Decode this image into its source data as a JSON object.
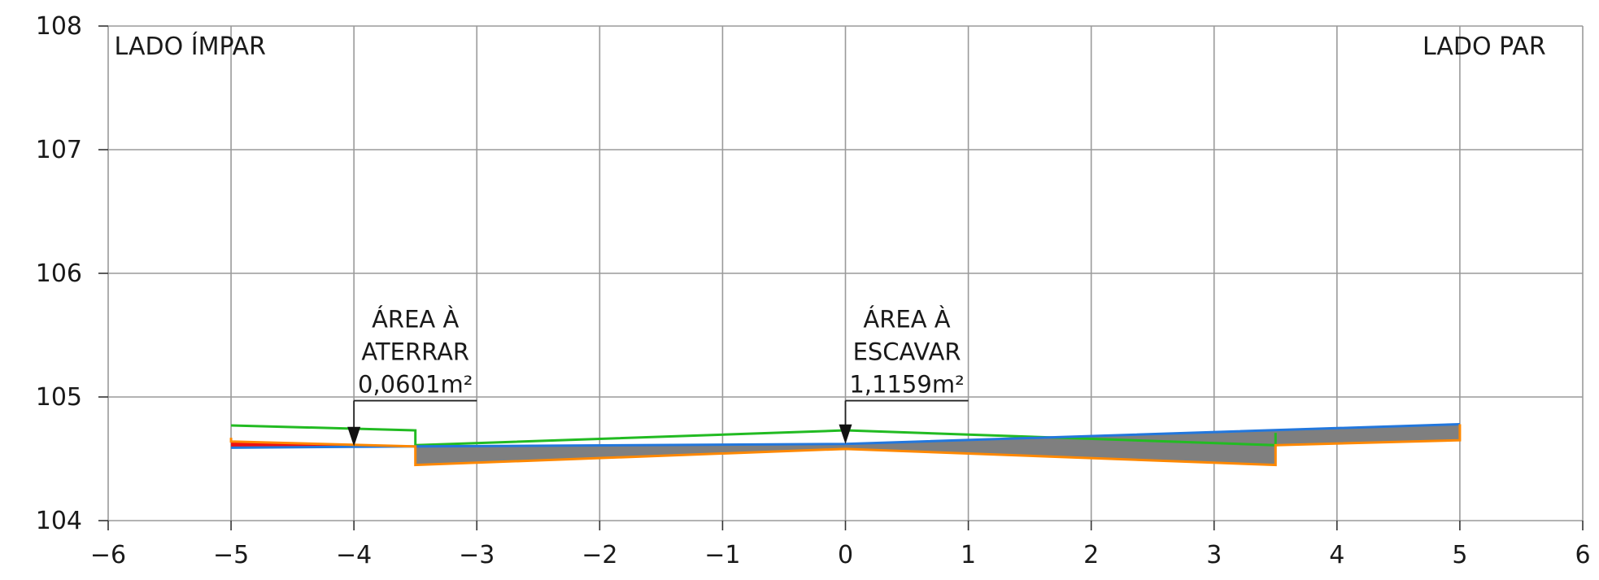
{
  "chart_data": {
    "type": "line",
    "xlim": [
      -6,
      6
    ],
    "ylim": [
      104,
      108
    ],
    "x_ticks": [
      -6,
      -5,
      -4,
      -3,
      -2,
      -1,
      0,
      1,
      2,
      3,
      4,
      5,
      6
    ],
    "y_ticks": [
      104,
      105,
      106,
      107,
      108
    ],
    "x_tick_labels": [
      "−6",
      "−5",
      "−4",
      "−3",
      "−2",
      "−1",
      "0",
      "1",
      "2",
      "3",
      "4",
      "5",
      "6"
    ],
    "y_tick_labels": [
      "104",
      "105",
      "106",
      "107",
      "108"
    ],
    "grid": true,
    "side_labels": {
      "left": "LADO ÍMPAR",
      "right": "LADO PAR"
    },
    "series": [
      {
        "color": "#22bb22",
        "points": [
          [
            -5,
            104.77
          ],
          [
            -3.5,
            104.73
          ],
          [
            -3.5,
            104.61
          ],
          [
            0,
            104.73
          ],
          [
            3.5,
            104.61
          ],
          [
            3.5,
            104.71
          ]
        ]
      },
      {
        "color": "#2277dd",
        "points": [
          [
            -5,
            104.59
          ],
          [
            -3.5,
            104.6
          ],
          [
            0,
            104.62
          ],
          [
            5,
            104.78
          ]
        ]
      },
      {
        "color": "#ff8800",
        "points": [
          [
            -5,
            104.67
          ],
          [
            -5,
            104.64
          ],
          [
            -3.5,
            104.6
          ],
          [
            -3.5,
            104.45
          ],
          [
            0,
            104.58
          ],
          [
            3.5,
            104.45
          ],
          [
            3.5,
            104.61
          ],
          [
            5,
            104.65
          ],
          [
            5,
            104.78
          ]
        ]
      }
    ],
    "fill_areas": [
      {
        "type": "escavar",
        "color": "#7f7f7f",
        "polygon": [
          [
            -3.5,
            104.6
          ],
          [
            0,
            104.62
          ],
          [
            5,
            104.78
          ],
          [
            5,
            104.65
          ],
          [
            3.5,
            104.61
          ],
          [
            3.5,
            104.45
          ],
          [
            0,
            104.58
          ],
          [
            -3.5,
            104.45
          ]
        ]
      },
      {
        "type": "aterrar",
        "color": "#ee1111",
        "polygon": [
          [
            -5,
            104.64
          ],
          [
            -3.5,
            104.6
          ],
          [
            -5,
            104.59
          ]
        ]
      }
    ],
    "annotations": [
      {
        "lines": [
          "ÁREA À",
          "ATERRAR",
          "0,0601m²"
        ],
        "arrow_x": -4,
        "arrow_y": 104.6,
        "leader_end_x": -3,
        "leader_y": 104.97
      },
      {
        "lines": [
          "ÁREA À",
          "ESCAVAR",
          "1,1159m²"
        ],
        "arrow_x": 0,
        "arrow_y": 104.62,
        "leader_end_x": 1,
        "leader_y": 104.97
      }
    ]
  }
}
